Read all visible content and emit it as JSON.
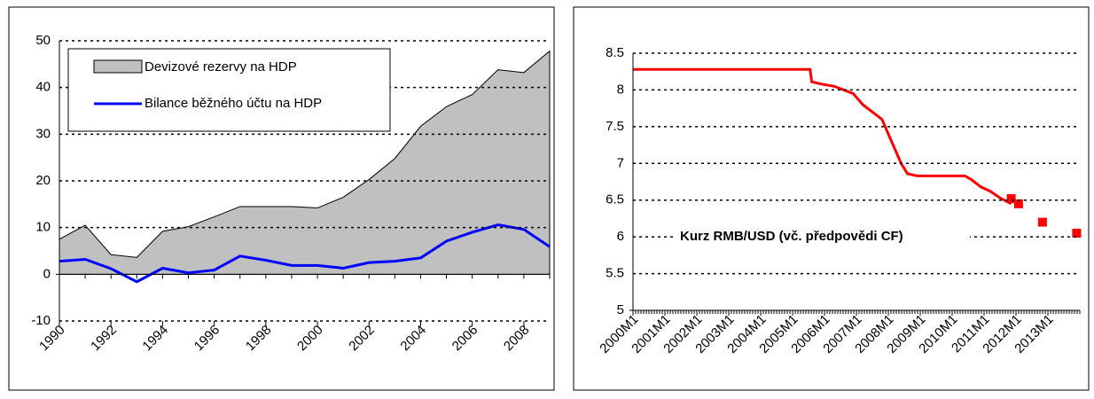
{
  "chart_data": [
    {
      "type": "area",
      "x": [
        1990,
        1991,
        1992,
        1993,
        1994,
        1995,
        1996,
        1997,
        1998,
        1999,
        2000,
        2001,
        2002,
        2003,
        2004,
        2005,
        2006,
        2007,
        2008,
        2009
      ],
      "series": [
        {
          "name": "Devizové rezervy na HDP",
          "type": "area",
          "color": "#c0c0c0",
          "values": [
            7.5,
            10.5,
            4.2,
            3.6,
            9.2,
            10.2,
            12.3,
            14.5,
            14.5,
            14.5,
            14.2,
            16.5,
            20.3,
            24.8,
            31.7,
            35.9,
            38.5,
            43.8,
            43.2,
            47.8
          ]
        },
        {
          "name": "Bilance běžného účtu na HDP",
          "type": "line",
          "color": "#0000ff",
          "values": [
            2.8,
            3.2,
            1.2,
            -1.6,
            1.3,
            0.3,
            0.9,
            3.9,
            3.0,
            1.9,
            1.9,
            1.3,
            2.5,
            2.8,
            3.5,
            7.1,
            9.0,
            10.6,
            9.6,
            5.9
          ]
        }
      ],
      "xlim": [
        1990,
        2009
      ],
      "xticks": [
        1990,
        1992,
        1994,
        1996,
        1998,
        2000,
        2002,
        2004,
        2006,
        2008
      ],
      "ylim": [
        -10,
        50
      ],
      "yticks": [
        -10,
        0,
        10,
        20,
        30,
        40,
        50
      ],
      "grid": true
    },
    {
      "type": "line",
      "annotation": "Kurz RMB/USD (vč. předpovědi CF)",
      "series": [
        {
          "type": "line",
          "color": "#ff0000",
          "x": [
            2000,
            2005.55,
            2005.6,
            2005.9,
            2006.3,
            2006.6,
            2006.9,
            2007.2,
            2007.5,
            2007.8,
            2008.0,
            2008.2,
            2008.4,
            2008.6,
            2008.9,
            2009.2,
            2010.4,
            2010.6,
            2010.9,
            2011.2,
            2011.5,
            2011.85
          ],
          "values": [
            8.28,
            8.28,
            8.11,
            8.08,
            8.05,
            8.0,
            7.95,
            7.8,
            7.7,
            7.6,
            7.4,
            7.2,
            7.0,
            6.86,
            6.83,
            6.83,
            6.83,
            6.78,
            6.68,
            6.62,
            6.53,
            6.45
          ]
        },
        {
          "type": "scatter",
          "color": "#ff0000",
          "x": [
            2011.85,
            2012.08,
            2012.83,
            2013.9
          ],
          "values": [
            6.52,
            6.45,
            6.2,
            6.05
          ]
        }
      ],
      "xlim": [
        2000,
        2014
      ],
      "xticks": [
        {
          "value": 2000,
          "label": "2000M1"
        },
        {
          "value": 2001,
          "label": "2001M1"
        },
        {
          "value": 2002,
          "label": "2002M1"
        },
        {
          "value": 2003,
          "label": "2003M1"
        },
        {
          "value": 2004,
          "label": "2004M1"
        },
        {
          "value": 2005,
          "label": "2005M1"
        },
        {
          "value": 2006,
          "label": "2006M1"
        },
        {
          "value": 2007,
          "label": "2007M1"
        },
        {
          "value": 2008,
          "label": "2008M1"
        },
        {
          "value": 2009,
          "label": "2009M1"
        },
        {
          "value": 2010,
          "label": "2010M1"
        },
        {
          "value": 2011,
          "label": "2011M1"
        },
        {
          "value": 2012,
          "label": "2012M1"
        },
        {
          "value": 2013,
          "label": "2013M1"
        }
      ],
      "ylim": [
        5,
        8.5
      ],
      "yticks": [
        5,
        5.5,
        6,
        6.5,
        7,
        7.5,
        8,
        8.5
      ],
      "grid": true
    }
  ]
}
